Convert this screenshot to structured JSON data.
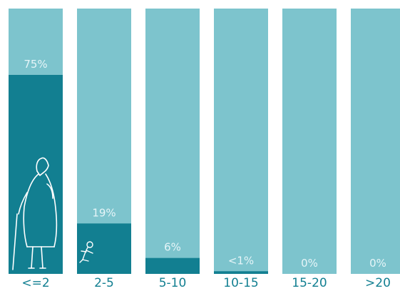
{
  "chart_data": {
    "type": "bar",
    "categories": [
      "<=2",
      "2-5",
      "5-10",
      "10-15",
      "15-20",
      ">20"
    ],
    "values": [
      75,
      19,
      6,
      1,
      0,
      0
    ],
    "value_labels": [
      "75%",
      "19%",
      "6%",
      "<1%",
      "0%",
      "0%"
    ],
    "ylim": [
      0,
      100
    ],
    "title": "",
    "xlabel": "",
    "ylabel": "",
    "grid": false,
    "legend": "none",
    "colors": {
      "background_bar": "#7dc4cd",
      "value_bar": "#127f91",
      "category_label": "#127f91",
      "value_label": "#e6f5f8",
      "illustration": "#ffffff"
    }
  },
  "illustrations": [
    "elderly-person-with-cane-icon",
    "child-crawling-icon"
  ]
}
